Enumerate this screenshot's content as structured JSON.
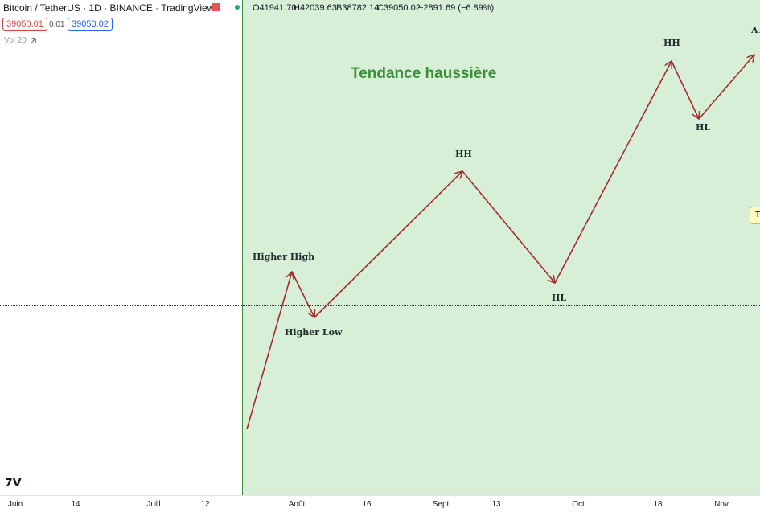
{
  "header": {
    "symbol": "Bitcoin / TetherUS · 1D · BINANCE · TradingView",
    "ohlc": [
      "O41941.70",
      "H42039.63",
      "B38782.14",
      "C39050.02",
      "−2891.69 (−6.89%)"
    ],
    "bid": "39050.01",
    "spread": "0.01",
    "ask": "39050.02",
    "volume": "Vol 20"
  },
  "chart": {
    "title": "Tendance haussière",
    "labels": [
      "Higher High",
      "Higher Low",
      "HH",
      "HL",
      "HH",
      "HL",
      "AT"
    ],
    "side_tag": "T"
  },
  "x_axis": [
    "Juin",
    "14",
    "Juill",
    "12",
    "Août",
    "16",
    "Sept",
    "13",
    "Oct",
    "18",
    "Nov"
  ]
}
